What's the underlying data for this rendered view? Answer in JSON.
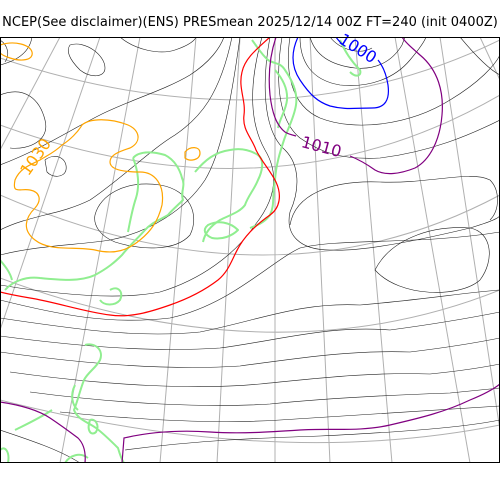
{
  "title": "NCEP(See disclaimer)(ENS) PRESmean 2025/12/14 00Z FT=240 (init 0400Z)",
  "contour_labels": {
    "l1030": "1030",
    "l1010": "1010",
    "l1000": "1000"
  },
  "colors": {
    "background": "#ffffff",
    "isobar_thin": "#222222",
    "graticule": "#b0b0b0",
    "coastline": "#90ee90",
    "isobar_1030": "#ffa500",
    "isobar_1020": "#ff0000",
    "isobar_1010": "#800080",
    "isobar_1000": "#0000ff"
  }
}
